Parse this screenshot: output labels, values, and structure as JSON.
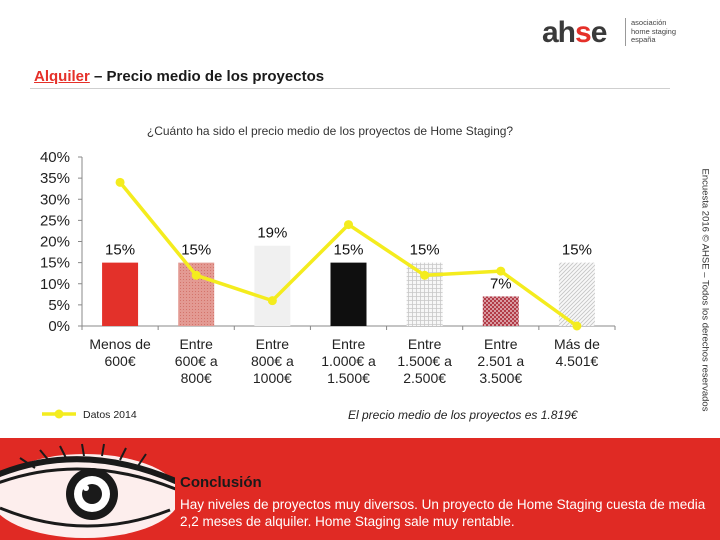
{
  "header": {
    "logo_word_a": "ah",
    "logo_word_s": "s",
    "logo_word_e": "e",
    "logo_sub": [
      "asociación",
      "home staging",
      "españa"
    ]
  },
  "slide": {
    "title_highlight": "Alquiler",
    "title_rest": " – Precio medio de los proyectos",
    "question": "¿Cuánto ha sido el precio medio de los proyectos de Home Staging?",
    "side_note": "Encuesta 2016 © AHSE – Todos los derechos reservados",
    "average_note": "El precio medio de los proyectos es 1.819€"
  },
  "chart_data": {
    "type": "bar",
    "title": "¿Cuánto ha sido el precio medio de los proyectos de Home Staging?",
    "categories": [
      [
        "Menos de",
        "600€"
      ],
      [
        "Entre",
        "600€ a",
        "800€"
      ],
      [
        "Entre",
        "800€ a",
        "1000€"
      ],
      [
        "Entre",
        "1.000€ a",
        "1.500€"
      ],
      [
        "Entre",
        "1.500€ a",
        "2.500€"
      ],
      [
        "Entre",
        "2.501 a",
        "3.500€"
      ],
      [
        "Más de",
        "4.501€"
      ]
    ],
    "series": [
      {
        "name": "Encuesta 2016",
        "kind": "bar",
        "values": [
          15,
          15,
          19,
          15,
          15,
          7,
          15
        ],
        "labels": [
          "15%",
          "15%",
          "19%",
          "15%",
          "15%",
          "7%",
          "15%"
        ],
        "colors": [
          "#e3312a",
          "#e08f88",
          "#f0f0f0",
          "#0f0f0f",
          "#f4f4f4",
          "#b5404a",
          "#f4f4f4"
        ],
        "patterns": [
          "solid",
          "dense",
          "solid",
          "solid",
          "grid",
          "checker",
          "diagonal"
        ]
      },
      {
        "name": "Datos 2014",
        "kind": "line",
        "color": "#f4ec1e",
        "values": [
          34,
          12,
          6,
          24,
          12,
          13,
          0
        ]
      }
    ],
    "yticks": [
      "0%",
      "5%",
      "10%",
      "15%",
      "20%",
      "25%",
      "30%",
      "35%",
      "40%"
    ],
    "ylim": [
      0,
      40
    ],
    "legend": "bottom-left"
  },
  "conclusion": {
    "title": "Conclusión",
    "text": "Hay niveles de proyectos muy diversos. Un proyecto de Home Staging cuesta de media 2,2 meses de alquiler. Home Staging sale muy rentable."
  }
}
